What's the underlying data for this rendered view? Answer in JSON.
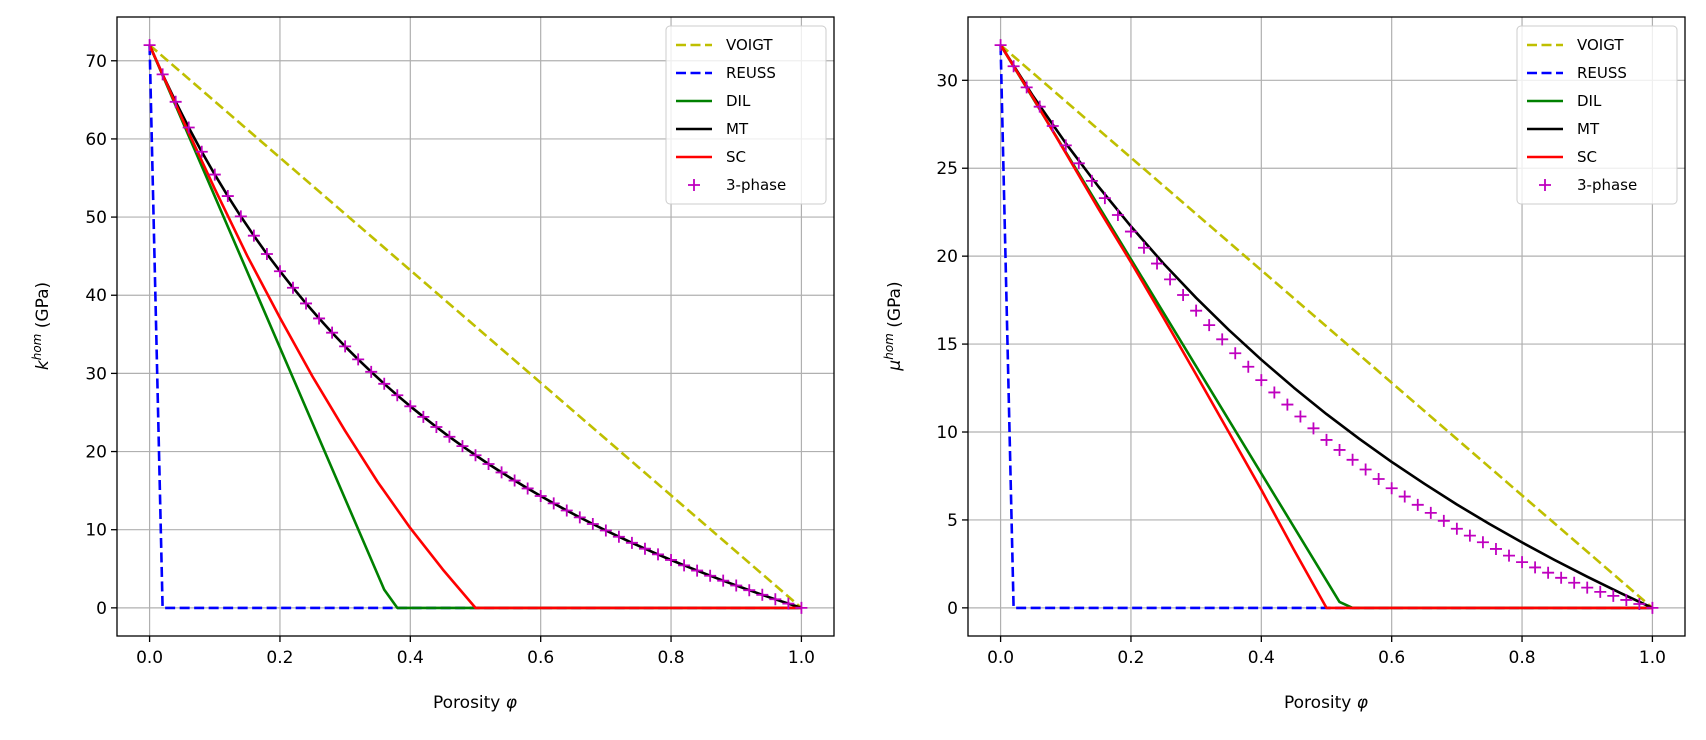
{
  "chart_data": [
    {
      "type": "line",
      "xlabel": {
        "text": "Porosity ",
        "symbol": "φ"
      },
      "ylabel": {
        "base": "k",
        "sup": "hom",
        "unit": " (GPa)"
      },
      "xlim": [
        -0.05,
        1.05
      ],
      "ylim": [
        -3.6,
        75.6
      ],
      "xticks": [
        0.0,
        0.2,
        0.4,
        0.6,
        0.8,
        1.0
      ],
      "xtick_labels": [
        "0.0",
        "0.2",
        "0.4",
        "0.6",
        "0.8",
        "1.0"
      ],
      "yticks": [
        0,
        10,
        20,
        30,
        40,
        50,
        60,
        70
      ],
      "ytick_labels": [
        "0",
        "10",
        "20",
        "30",
        "40",
        "50",
        "60",
        "70"
      ],
      "grid": true,
      "legend": "top-right",
      "series": [
        {
          "name": "VOIGT",
          "color": "#bfbf00",
          "style": "dashed",
          "x": [
            0,
            1
          ],
          "y": [
            72,
            0
          ]
        },
        {
          "name": "REUSS",
          "color": "#0000ff",
          "style": "dashed",
          "x": [
            0,
            0.02,
            1
          ],
          "y": [
            72,
            0,
            0
          ]
        },
        {
          "name": "DIL",
          "color": "#008000",
          "style": "solid",
          "x": [
            0,
            0.36,
            0.38,
            1
          ],
          "y": [
            72,
            2.34,
            0,
            0
          ]
        },
        {
          "name": "MT",
          "color": "#000000",
          "style": "solid",
          "x": [
            0,
            0.02,
            0.04,
            0.06,
            0.08,
            0.1,
            0.12,
            0.14,
            0.16,
            0.18,
            0.2,
            0.22,
            0.24,
            0.26,
            0.28,
            0.3,
            0.32,
            0.34,
            0.36,
            0.38,
            0.4,
            0.42,
            0.44,
            0.46,
            0.48,
            0.5,
            0.52,
            0.54,
            0.56,
            0.58,
            0.6,
            0.62,
            0.64,
            0.66,
            0.68,
            0.7,
            0.72,
            0.74,
            0.76,
            0.78,
            0.8,
            0.82,
            0.84,
            0.86,
            0.88,
            0.9,
            0.92,
            0.94,
            0.96,
            0.98,
            1.0
          ],
          "y": [
            72,
            68.26,
            64.75,
            61.46,
            58.36,
            55.44,
            52.69,
            50.09,
            47.62,
            45.28,
            43.07,
            40.96,
            38.95,
            37.03,
            35.21,
            33.46,
            31.79,
            30.2,
            28.67,
            27.2,
            25.79,
            24.44,
            23.14,
            21.89,
            20.69,
            19.53,
            18.41,
            17.33,
            16.29,
            15.28,
            14.31,
            13.37,
            12.46,
            11.58,
            10.73,
            9.9,
            9.1,
            8.32,
            7.57,
            6.84,
            6.13,
            5.44,
            4.77,
            4.11,
            3.48,
            2.86,
            2.26,
            1.67,
            1.1,
            0.54,
            0
          ]
        },
        {
          "name": "SC",
          "color": "#ff0000",
          "style": "solid",
          "x": [
            0,
            0.05,
            0.1,
            0.15,
            0.2,
            0.25,
            0.3,
            0.35,
            0.4,
            0.45,
            0.5,
            1.0
          ],
          "y": [
            72,
            62.6,
            53.6,
            45.0,
            37.1,
            29.6,
            22.65,
            16.1,
            10.2,
            4.9,
            0,
            0
          ]
        },
        {
          "name": "3-phase",
          "color": "#bf00bf",
          "style": "marker-plus",
          "x": [
            0,
            0.02,
            0.04,
            0.06,
            0.08,
            0.1,
            0.12,
            0.14,
            0.16,
            0.18,
            0.2,
            0.22,
            0.24,
            0.26,
            0.28,
            0.3,
            0.32,
            0.34,
            0.36,
            0.38,
            0.4,
            0.42,
            0.44,
            0.46,
            0.48,
            0.5,
            0.52,
            0.54,
            0.56,
            0.58,
            0.6,
            0.62,
            0.64,
            0.66,
            0.68,
            0.7,
            0.72,
            0.74,
            0.76,
            0.78,
            0.8,
            0.82,
            0.84,
            0.86,
            0.88,
            0.9,
            0.92,
            0.94,
            0.96,
            0.98,
            1.0
          ],
          "y": [
            72,
            68.26,
            64.75,
            61.46,
            58.36,
            55.44,
            52.69,
            50.09,
            47.62,
            45.28,
            43.07,
            40.96,
            38.95,
            37.03,
            35.21,
            33.46,
            31.79,
            30.2,
            28.67,
            27.2,
            25.79,
            24.44,
            23.14,
            21.89,
            20.69,
            19.53,
            18.41,
            17.33,
            16.29,
            15.28,
            14.31,
            13.37,
            12.46,
            11.58,
            10.73,
            9.9,
            9.1,
            8.32,
            7.57,
            6.84,
            6.13,
            5.44,
            4.77,
            4.11,
            3.48,
            2.86,
            2.26,
            1.67,
            1.1,
            0.54,
            0
          ]
        }
      ]
    },
    {
      "type": "line",
      "xlabel": {
        "text": "Porosity ",
        "symbol": "φ"
      },
      "ylabel": {
        "base": "μ",
        "sup": "hom",
        "unit": " (GPa)"
      },
      "xlim": [
        -0.05,
        1.05
      ],
      "ylim": [
        -1.6,
        33.6
      ],
      "xticks": [
        0.0,
        0.2,
        0.4,
        0.6,
        0.8,
        1.0
      ],
      "xtick_labels": [
        "0.0",
        "0.2",
        "0.4",
        "0.6",
        "0.8",
        "1.0"
      ],
      "yticks": [
        0,
        5,
        10,
        15,
        20,
        25,
        30
      ],
      "ytick_labels": [
        "0",
        "5",
        "10",
        "15",
        "20",
        "25",
        "30"
      ],
      "grid": true,
      "legend": "top-right",
      "series": [
        {
          "name": "VOIGT",
          "color": "#bfbf00",
          "style": "dashed",
          "x": [
            0,
            1
          ],
          "y": [
            32,
            0
          ]
        },
        {
          "name": "REUSS",
          "color": "#0000ff",
          "style": "dashed",
          "x": [
            0,
            0.02,
            1
          ],
          "y": [
            32,
            0,
            0
          ]
        },
        {
          "name": "DIL",
          "color": "#008000",
          "style": "solid",
          "x": [
            0,
            0.52,
            0.54,
            1
          ],
          "y": [
            32,
            0.34,
            0,
            0
          ]
        },
        {
          "name": "MT",
          "color": "#000000",
          "style": "solid",
          "x": [
            0,
            0.05,
            0.1,
            0.15,
            0.2,
            0.25,
            0.3,
            0.35,
            0.4,
            0.45,
            0.5,
            0.55,
            0.6,
            0.65,
            0.7,
            0.75,
            0.8,
            0.85,
            0.9,
            0.95,
            1.0
          ],
          "y": [
            32,
            29.09,
            26.42,
            23.96,
            21.69,
            19.58,
            17.63,
            15.81,
            14.11,
            12.52,
            11.02,
            9.62,
            8.3,
            7.06,
            5.88,
            4.77,
            3.72,
            2.72,
            1.77,
            0.86,
            0
          ]
        },
        {
          "name": "SC",
          "color": "#ff0000",
          "style": "solid",
          "x": [
            0,
            0.05,
            0.1,
            0.15,
            0.2,
            0.25,
            0.3,
            0.35,
            0.4,
            0.45,
            0.5,
            1.0
          ],
          "y": [
            32,
            29.0,
            25.86,
            22.7,
            19.65,
            16.5,
            13.27,
            10.0,
            6.72,
            3.3,
            0,
            0
          ]
        },
        {
          "name": "3-phase",
          "color": "#bf00bf",
          "style": "marker-plus",
          "x": [
            0,
            0.02,
            0.04,
            0.06,
            0.08,
            0.1,
            0.12,
            0.14,
            0.16,
            0.18,
            0.2,
            0.22,
            0.24,
            0.26,
            0.28,
            0.3,
            0.32,
            0.34,
            0.36,
            0.38,
            0.4,
            0.42,
            0.44,
            0.46,
            0.48,
            0.5,
            0.52,
            0.54,
            0.56,
            0.58,
            0.6,
            0.62,
            0.64,
            0.66,
            0.68,
            0.7,
            0.72,
            0.74,
            0.76,
            0.78,
            0.8,
            0.82,
            0.84,
            0.86,
            0.88,
            0.9,
            0.92,
            0.94,
            0.96,
            0.98,
            1.0
          ],
          "y": [
            32,
            30.8,
            29.6,
            28.5,
            27.4,
            26.3,
            25.28,
            24.28,
            23.3,
            22.34,
            21.4,
            20.48,
            19.58,
            18.68,
            17.79,
            16.9,
            16.08,
            15.27,
            14.48,
            13.71,
            12.95,
            12.25,
            11.56,
            10.88,
            10.21,
            9.55,
            8.98,
            8.42,
            7.87,
            7.33,
            6.8,
            6.33,
            5.86,
            5.4,
            4.95,
            4.5,
            4.11,
            3.73,
            3.35,
            2.97,
            2.6,
            2.3,
            2.0,
            1.71,
            1.43,
            1.15,
            0.91,
            0.68,
            0.45,
            0.22,
            0
          ]
        }
      ]
    }
  ]
}
